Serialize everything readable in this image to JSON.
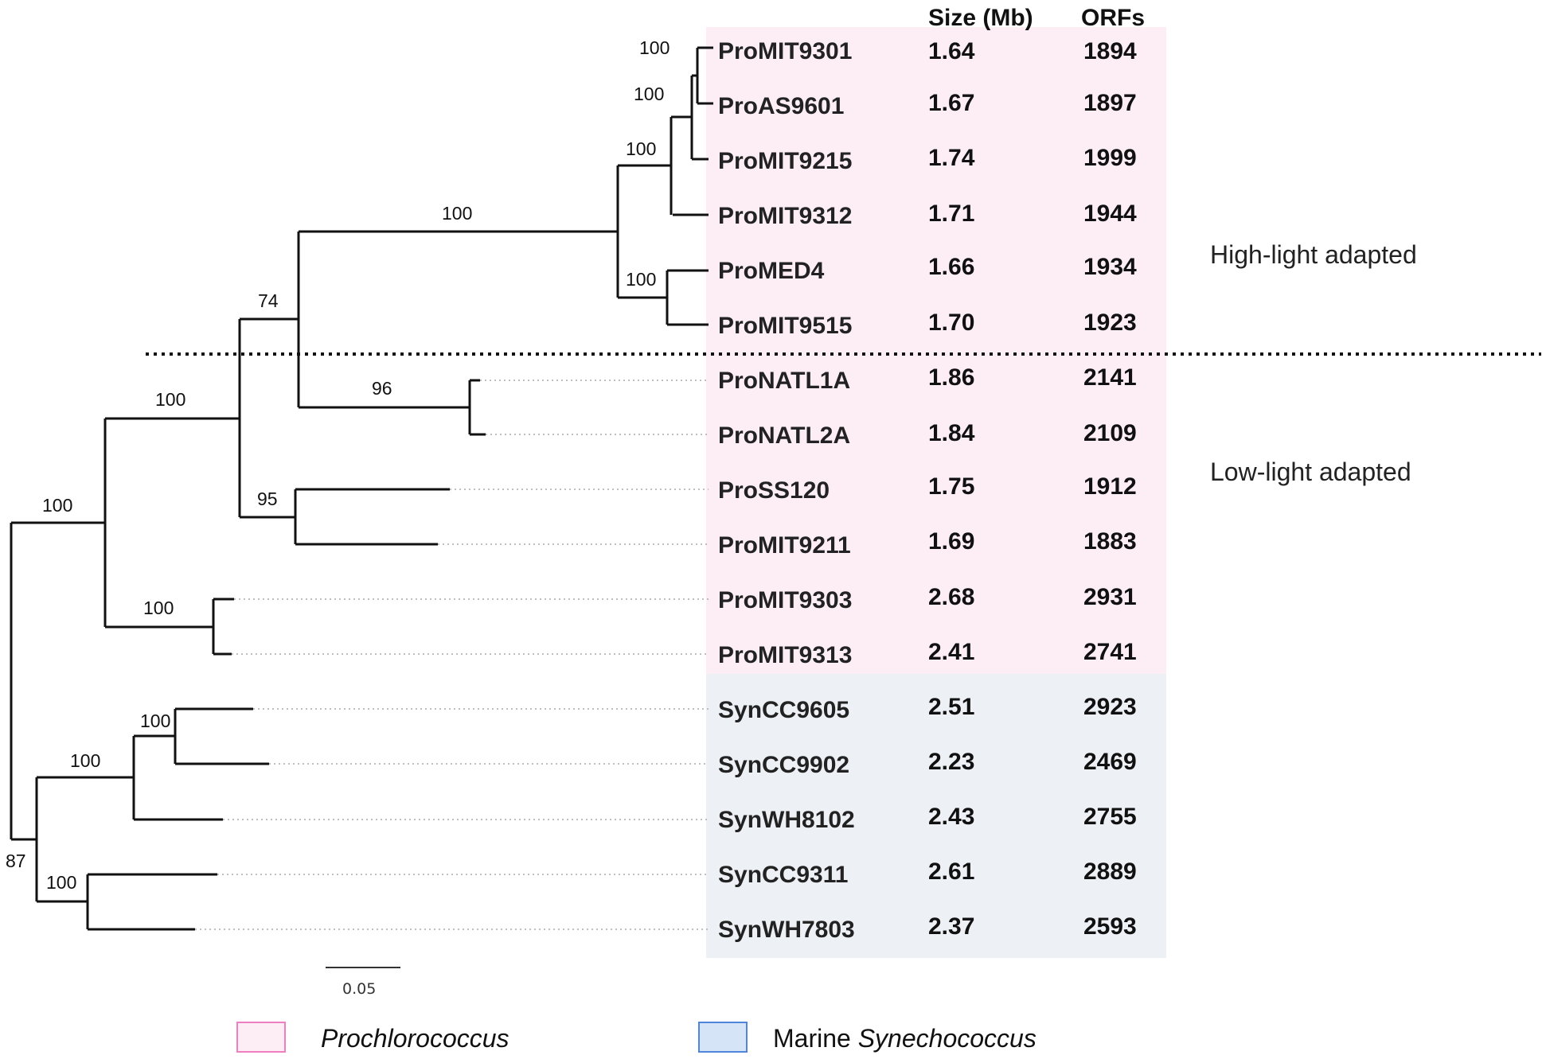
{
  "columns": {
    "size_header": "Size (Mb)",
    "orfs_header": "ORFs"
  },
  "taxa": [
    {
      "name": "ProMIT9301",
      "size": "1.64",
      "orfs": "1894"
    },
    {
      "name": "ProAS9601",
      "size": "1.67",
      "orfs": "1897"
    },
    {
      "name": "ProMIT9215",
      "size": "1.74",
      "orfs": "1999"
    },
    {
      "name": "ProMIT9312",
      "size": "1.71",
      "orfs": "1944"
    },
    {
      "name": "ProMED4",
      "size": "1.66",
      "orfs": "1934"
    },
    {
      "name": "ProMIT9515",
      "size": "1.70",
      "orfs": "1923"
    },
    {
      "name": "ProNATL1A",
      "size": "1.86",
      "orfs": "2141"
    },
    {
      "name": "ProNATL2A",
      "size": "1.84",
      "orfs": "2109"
    },
    {
      "name": "ProSS120",
      "size": "1.75",
      "orfs": "1912"
    },
    {
      "name": "ProMIT9211",
      "size": "1.69",
      "orfs": "1883"
    },
    {
      "name": "ProMIT9303",
      "size": "2.68",
      "orfs": "2931"
    },
    {
      "name": "ProMIT9313",
      "size": "2.41",
      "orfs": "2741"
    },
    {
      "name": "SynCC9605",
      "size": "2.51",
      "orfs": "2923"
    },
    {
      "name": "SynCC9902",
      "size": "2.23",
      "orfs": "2469"
    },
    {
      "name": "SynWH8102",
      "size": "2.43",
      "orfs": "2755"
    },
    {
      "name": "SynCC9311",
      "size": "2.61",
      "orfs": "2889"
    },
    {
      "name": "SynWH7803",
      "size": "2.37",
      "orfs": "2593"
    }
  ],
  "bootstrap": [
    {
      "id": "n1",
      "label": "100"
    },
    {
      "id": "n2",
      "label": "100"
    },
    {
      "id": "n3",
      "label": "100"
    },
    {
      "id": "n4",
      "label": "100"
    },
    {
      "id": "n5",
      "label": "100"
    },
    {
      "id": "n6",
      "label": "74"
    },
    {
      "id": "n7",
      "label": "96"
    },
    {
      "id": "n8",
      "label": "95"
    },
    {
      "id": "n9",
      "label": "100"
    },
    {
      "id": "n10",
      "label": "100"
    },
    {
      "id": "n11",
      "label": "100"
    },
    {
      "id": "n12",
      "label": "100"
    },
    {
      "id": "n13",
      "label": "100"
    },
    {
      "id": "n14",
      "label": "100"
    },
    {
      "id": "n15",
      "label": "87"
    }
  ],
  "groups": {
    "high_light": "High-light adapted",
    "low_light": "Low-light adapted"
  },
  "scale_bar": {
    "label": "0.05"
  },
  "legend": {
    "prochlorococcus": {
      "label": "Prochlorococcus"
    },
    "synechococcus": {
      "prefix": "Marine ",
      "genus": "Synechococcus"
    }
  },
  "colors": {
    "prochlorococcus_fill": "#fdeef6",
    "prochlorococcus_border": "#ef7fc0",
    "synechococcus_fill": "#edf1f6",
    "legend_syn_fill": "#d6e4f8",
    "synechococcus_border": "#4f86dc"
  }
}
